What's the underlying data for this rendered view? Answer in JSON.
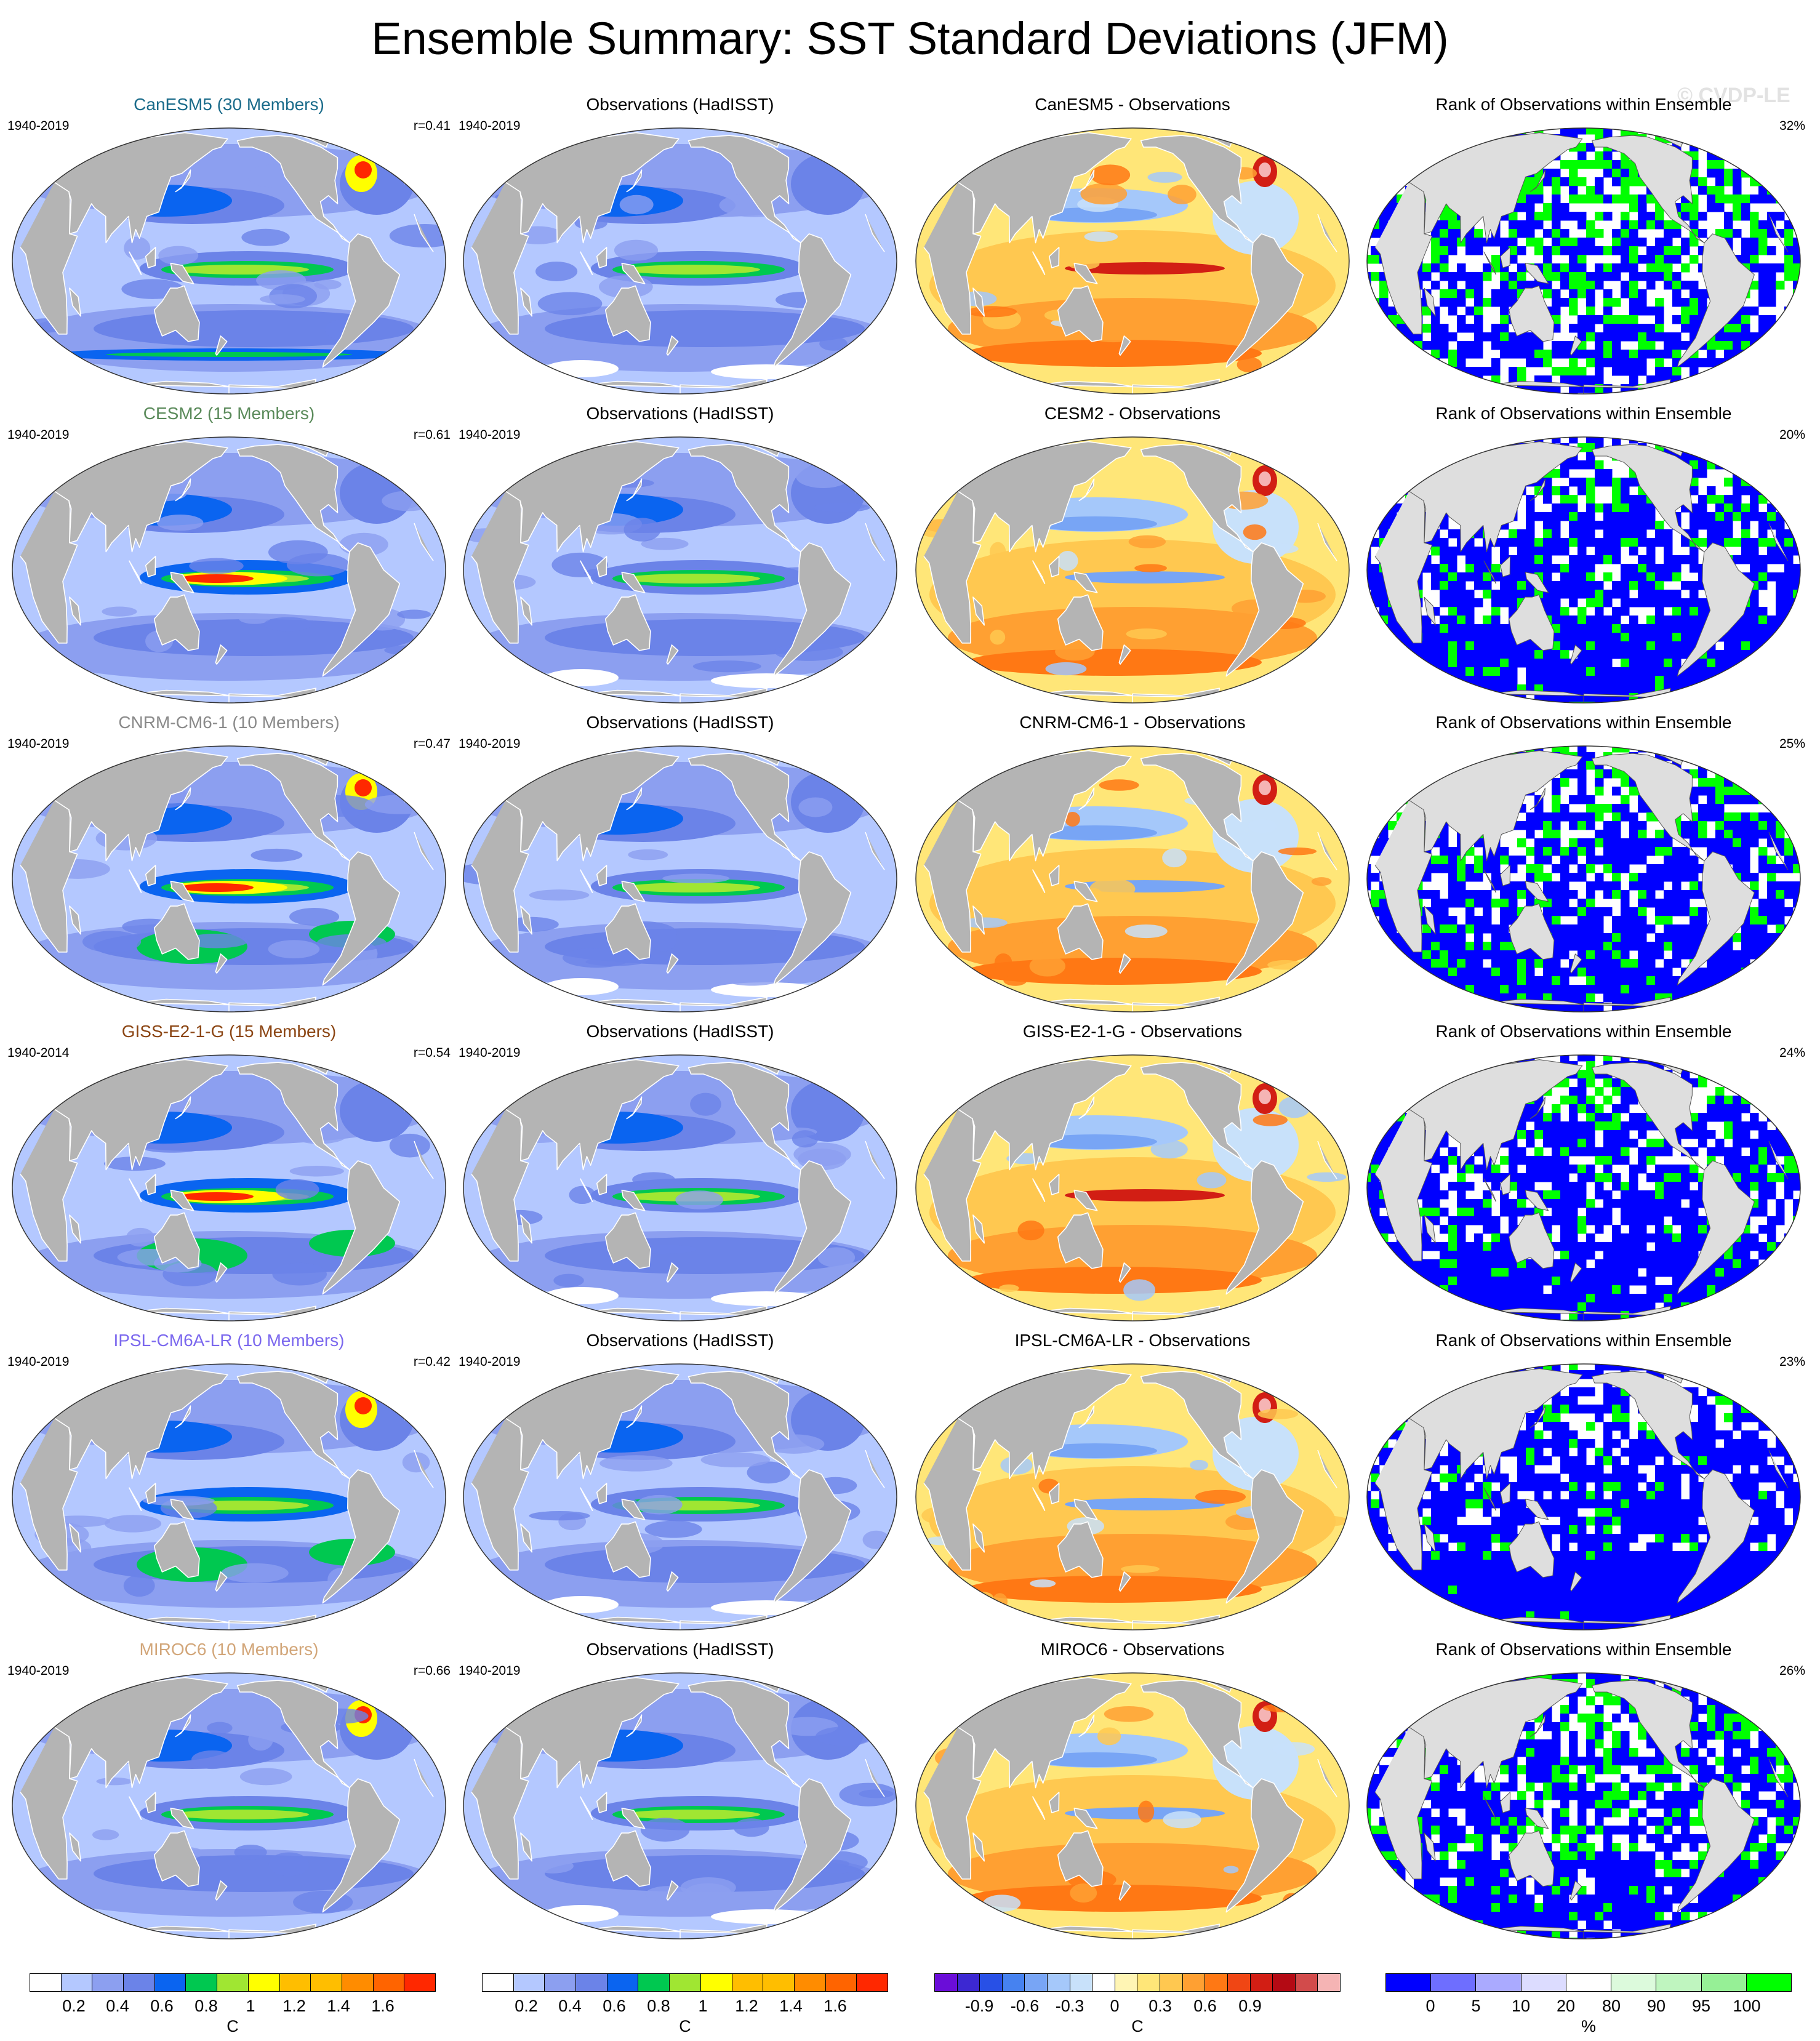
{
  "title": "Ensemble Summary: SST Standard Deviations (JFM)",
  "watermark": "© CVDP-LE",
  "colors": {
    "land": "#b4b4b4",
    "land_light": "#dedede",
    "coast": "#ffffff",
    "std_scale": [
      "#ffffff",
      "#b4c8ff",
      "#8c9ff0",
      "#6b83e8",
      "#0a64f0",
      "#00c850",
      "#a0e632",
      "#ffff00",
      "#ffbe00",
      "#ff8c00",
      "#ff2800"
    ],
    "diff_scale": [
      "#6a0dd8",
      "#3c28d2",
      "#2850e6",
      "#4682f0",
      "#78a5f5",
      "#a5c8fa",
      "#c8e1fa",
      "#ffffff",
      "#fff5b4",
      "#ffe678",
      "#ffc850",
      "#ffa032",
      "#ff7814",
      "#f04614",
      "#d21e14",
      "#b40a14",
      "#d24b4b",
      "#f5b4b4"
    ],
    "rank_scale": [
      "#0000ff",
      "#6e6eff",
      "#aaaaff",
      "#dcdcff",
      "#ffffff",
      "#dcfadc",
      "#bff5bf",
      "#96f096",
      "#00ff00"
    ]
  },
  "rows": [
    {
      "model": {
        "title": "CanESM5 (30 Members)",
        "title_color": "#1a6b8a",
        "years": "1940-2019",
        "r": "r=0.41",
        "style": "canesm"
      },
      "obs": {
        "title": "Observations (HadISST)",
        "years": "1940-2019"
      },
      "diff": {
        "title": "CanESM5 - Observations"
      },
      "rank": {
        "title": "Rank of Observations within Ensemble",
        "pct": "32%",
        "blue": 0.45,
        "green": 0.25
      }
    },
    {
      "model": {
        "title": "CESM2 (15 Members)",
        "title_color": "#5a8a5a",
        "years": "1940-2019",
        "r": "r=0.61",
        "style": "cesm"
      },
      "obs": {
        "title": "Observations (HadISST)",
        "years": "1940-2019"
      },
      "diff": {
        "title": "CESM2 - Observations"
      },
      "rank": {
        "title": "Rank of Observations within Ensemble",
        "pct": "20%",
        "blue": 0.65,
        "green": 0.12
      }
    },
    {
      "model": {
        "title": "CNRM-CM6-1 (10 Members)",
        "title_color": "#8a8a8a",
        "years": "1940-2019",
        "r": "r=0.47",
        "style": "cnrm"
      },
      "obs": {
        "title": "Observations (HadISST)",
        "years": "1940-2019"
      },
      "diff": {
        "title": "CNRM-CM6-1 - Observations"
      },
      "rank": {
        "title": "Rank of Observations within Ensemble",
        "pct": "25%",
        "blue": 0.6,
        "green": 0.15
      }
    },
    {
      "model": {
        "title": "GISS-E2-1-G (15 Members)",
        "title_color": "#8b4513",
        "years": "1940-2014",
        "r": "r=0.54",
        "style": "giss"
      },
      "obs": {
        "title": "Observations (HadISST)",
        "years": "1940-2019"
      },
      "diff": {
        "title": "GISS-E2-1-G - Observations"
      },
      "rank": {
        "title": "Rank of Observations within Ensemble",
        "pct": "24%",
        "blue": 0.62,
        "green": 0.12
      }
    },
    {
      "model": {
        "title": "IPSL-CM6A-LR (10 Members)",
        "title_color": "#7b68ee",
        "years": "1940-2019",
        "r": "r=0.42",
        "style": "ipsl"
      },
      "obs": {
        "title": "Observations (HadISST)",
        "years": "1940-2019"
      },
      "diff": {
        "title": "IPSL-CM6A-LR - Observations"
      },
      "rank": {
        "title": "Rank of Observations within Ensemble",
        "pct": "23%",
        "blue": 0.72,
        "green": 0.08
      }
    },
    {
      "model": {
        "title": "MIROC6 (10 Members)",
        "title_color": "#d2a679",
        "years": "1940-2019",
        "r": "r=0.66",
        "style": "miroc"
      },
      "obs": {
        "title": "Observations (HadISST)",
        "years": "1940-2019"
      },
      "diff": {
        "title": "MIROC6 - Observations"
      },
      "rank": {
        "title": "Rank of Observations within Ensemble",
        "pct": "26%",
        "blue": 0.55,
        "green": 0.2
      }
    }
  ],
  "colorbars": [
    {
      "kind": "std",
      "ticks": [
        "0.2",
        "0.4",
        "0.6",
        "0.8",
        "1",
        "1.2",
        "1.4",
        "1.6"
      ],
      "unit": "C"
    },
    {
      "kind": "std",
      "ticks": [
        "0.2",
        "0.4",
        "0.6",
        "0.8",
        "1",
        "1.2",
        "1.4",
        "1.6"
      ],
      "unit": "C"
    },
    {
      "kind": "diff",
      "ticks": [
        "-0.9",
        "-0.6",
        "-0.3",
        "0",
        "0.3",
        "0.6",
        "0.9"
      ],
      "unit": "C"
    },
    {
      "kind": "rank",
      "ticks": [
        "0",
        "5",
        "10",
        "20",
        "80",
        "90",
        "95",
        "100"
      ],
      "unit": "%"
    }
  ]
}
